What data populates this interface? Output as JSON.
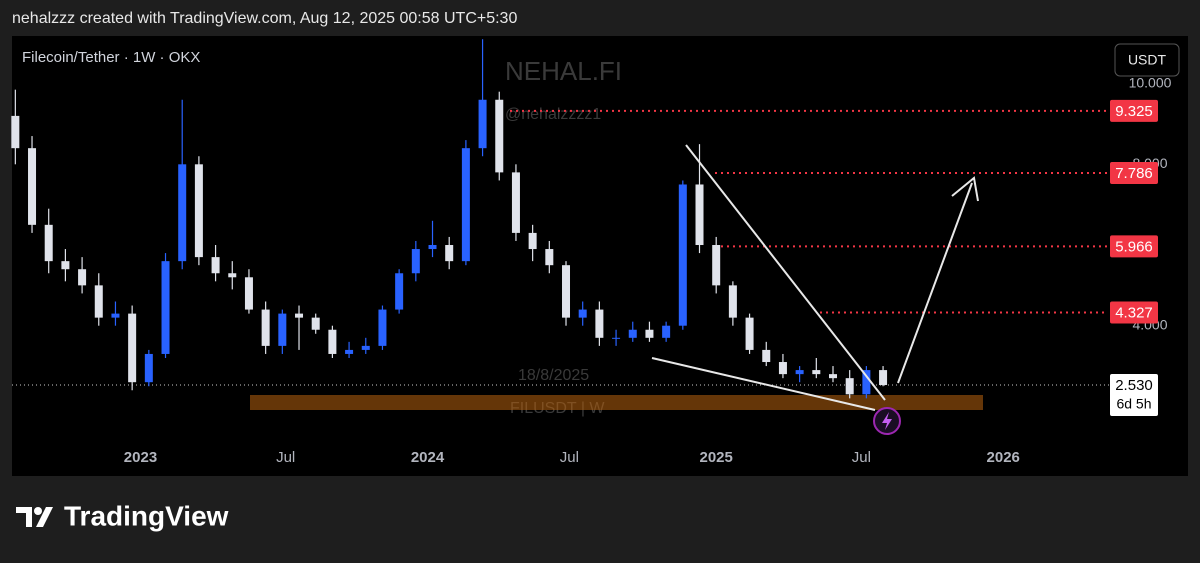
{
  "header": {
    "attribution": "nehalzzz created with TradingView.com, Aug 12, 2025 00:58 UTC+5:30"
  },
  "chart_data": {
    "type": "candlestick",
    "title": "Filecoin/Tether · 1W · OKX",
    "currency_button": "USDT",
    "watermarks": [
      "NEHAL.FI",
      "@nehalzzzz1",
      "18/8/2025",
      "FILUSDT | W"
    ],
    "up_color": "#2962ff",
    "down_color": "#e0e3eb",
    "open": [
      9.2,
      8.4,
      6.5,
      5.6,
      5.4,
      5.0,
      4.2,
      4.3,
      2.6,
      3.3,
      5.6,
      8.0,
      5.7,
      5.3,
      5.2,
      4.4,
      3.5,
      4.3,
      4.2,
      3.9,
      3.3,
      3.4,
      3.5,
      4.4,
      5.3,
      5.9,
      6.0,
      5.6,
      8.4,
      9.6,
      7.8,
      6.3,
      5.9,
      5.5,
      4.2,
      4.4,
      3.7,
      3.7,
      3.9,
      3.7,
      4.0,
      7.5,
      6.0,
      5.0,
      4.2,
      3.4,
      3.1,
      2.8,
      2.9,
      2.8,
      2.7,
      2.3,
      2.9
    ],
    "high": [
      9.85,
      8.7,
      6.9,
      5.9,
      5.7,
      5.3,
      4.6,
      4.5,
      3.4,
      5.8,
      9.6,
      8.2,
      6.0,
      5.6,
      5.4,
      4.6,
      4.4,
      4.5,
      4.3,
      4.0,
      3.6,
      3.7,
      4.5,
      5.4,
      6.1,
      6.6,
      6.2,
      8.6,
      11.1,
      9.8,
      8.0,
      6.5,
      6.1,
      5.6,
      4.6,
      4.6,
      3.9,
      4.1,
      4.1,
      4.1,
      7.6,
      8.5,
      6.2,
      5.1,
      4.3,
      3.6,
      3.3,
      3.0,
      3.2,
      3.0,
      2.9,
      3.0,
      3.0
    ],
    "low": [
      8.0,
      6.3,
      5.3,
      5.1,
      4.8,
      4.0,
      4.0,
      2.4,
      2.5,
      3.2,
      5.4,
      5.5,
      5.1,
      4.9,
      4.3,
      3.3,
      3.3,
      3.4,
      3.8,
      3.2,
      3.2,
      3.3,
      3.4,
      4.3,
      5.1,
      5.7,
      5.4,
      5.5,
      8.2,
      7.6,
      6.1,
      5.6,
      5.3,
      4.0,
      4.0,
      3.5,
      3.5,
      3.6,
      3.6,
      3.6,
      3.9,
      5.8,
      4.8,
      4.0,
      3.3,
      3.0,
      2.7,
      2.6,
      2.7,
      2.6,
      2.2,
      2.2,
      2.5
    ],
    "close": [
      8.4,
      6.5,
      5.6,
      5.4,
      5.0,
      4.2,
      4.3,
      2.6,
      3.3,
      5.6,
      8.0,
      5.7,
      5.3,
      5.2,
      4.4,
      3.5,
      4.3,
      4.2,
      3.9,
      3.3,
      3.4,
      3.5,
      4.4,
      5.3,
      5.9,
      6.0,
      5.6,
      8.4,
      9.6,
      7.8,
      6.3,
      5.9,
      5.5,
      4.2,
      4.4,
      3.7,
      3.7,
      3.9,
      3.7,
      4.0,
      7.5,
      6.0,
      5.0,
      4.2,
      3.4,
      3.1,
      2.8,
      2.9,
      2.8,
      2.7,
      2.3,
      2.9,
      {
        "value": 2.53,
        "label": "2.530"
      }
    ],
    "xlim": [
      -0.2,
      65.3
    ],
    "xticks": [
      {
        "value": 7.5,
        "label": "2023"
      },
      {
        "value": 16.2,
        "label": "Jul"
      },
      {
        "value": 24.7,
        "label": "2024"
      },
      {
        "value": 33.2,
        "label": "Jul"
      },
      {
        "value": 42.0,
        "label": "2025"
      },
      {
        "value": 50.7,
        "label": "Jul"
      },
      {
        "value": 59.2,
        "label": "2026"
      }
    ],
    "ylim": [
      0.3,
      11.18
    ],
    "yticks": [
      {
        "value": 10,
        "label": "10.000"
      },
      {
        "value": 8,
        "label": "8.000"
      },
      {
        "value": 4,
        "label": "4.000"
      }
    ],
    "levels": [
      9.325,
      7.786,
      5.966,
      4.327
    ],
    "level_color": "#f23645",
    "current_price": {
      "value": 2.53,
      "label": "2.530"
    },
    "countdown": "6d 5h"
  },
  "footer": {
    "brand": "TradingView"
  }
}
